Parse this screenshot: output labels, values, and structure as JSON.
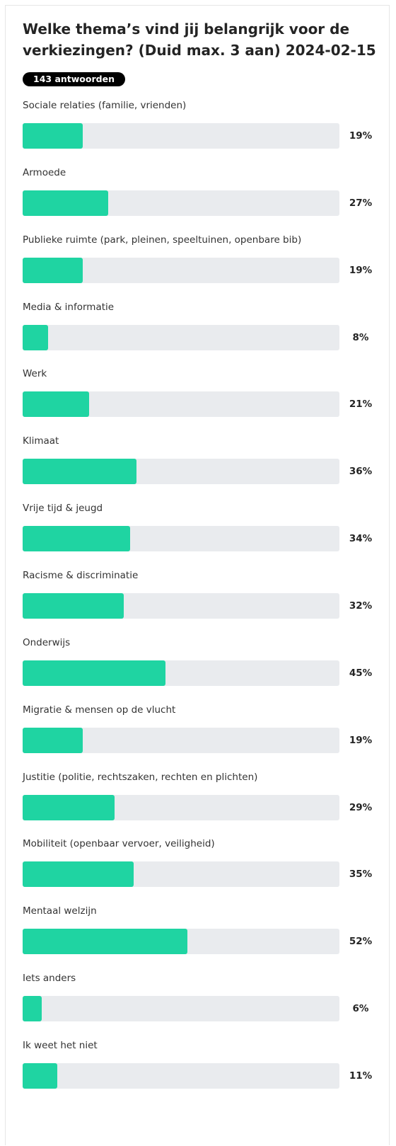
{
  "chart_data": {
    "type": "bar",
    "orientation": "horizontal",
    "title": "Welke thema’s vind jij belangrijk voor de verkiezingen? (Duid max. 3 aan) 2024-02-15",
    "subtitle": "143 antwoorden",
    "categories": [
      "Sociale relaties (familie, vrienden)",
      "Armoede",
      "Publieke ruimte (park, pleinen, speeltuinen, openbare bib)",
      "Media & informatie",
      "Werk",
      "Klimaat",
      "Vrije tijd & jeugd",
      "Racisme & discriminatie",
      "Onderwijs",
      "Migratie & mensen op de vlucht",
      "Justitie (politie, rechtszaken, rechten en plichten)",
      "Mobiliteit (openbaar vervoer, veiligheid)",
      "Mentaal welzijn",
      "Iets anders",
      "Ik weet het niet"
    ],
    "values": [
      19,
      27,
      19,
      8,
      21,
      36,
      34,
      32,
      45,
      19,
      29,
      35,
      52,
      6,
      11
    ],
    "value_labels": [
      "19%",
      "27%",
      "19%",
      "8%",
      "21%",
      "36%",
      "34%",
      "32%",
      "45%",
      "19%",
      "29%",
      "35%",
      "52%",
      "6%",
      "11%"
    ],
    "color": "#1fd4a2",
    "track_color": "#e9ebee",
    "xlim": [
      0,
      100
    ]
  }
}
